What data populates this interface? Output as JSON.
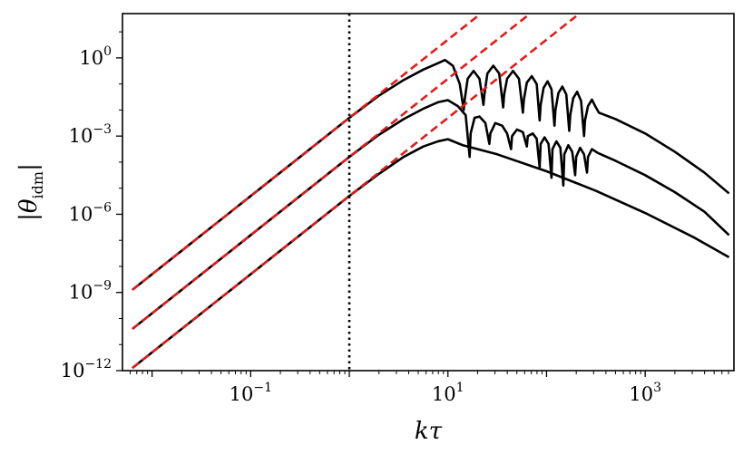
{
  "chart_data": {
    "type": "line",
    "xlabel_parts": [
      "k",
      "τ"
    ],
    "ylabel_parts": [
      "|",
      "θ",
      "idm",
      "|"
    ],
    "xscale": "log",
    "yscale": "log",
    "xlim_log10": [
      -2.3,
      3.9
    ],
    "ylim_log10": [
      -12,
      1.7
    ],
    "x_ticks": [
      {
        "base": "10",
        "exp": "−1",
        "log10": -1
      },
      {
        "base": "10",
        "exp": "1",
        "log10": 1
      },
      {
        "base": "10",
        "exp": "3",
        "log10": 3
      }
    ],
    "y_ticks": [
      {
        "base": "10",
        "exp": "0",
        "log10": 0
      },
      {
        "base": "10",
        "exp": "−3",
        "log10": -3
      },
      {
        "base": "10",
        "exp": "−6",
        "log10": -6
      },
      {
        "base": "10",
        "exp": "−9",
        "log10": -9
      },
      {
        "base": "10",
        "exp": "−12",
        "log10": -12
      }
    ],
    "vertical_line_log10_x": 0,
    "series": [
      {
        "color": "#000000",
        "style": "solid",
        "points_log10": [
          [
            -2.2,
            -8.9
          ],
          [
            -1.5,
            -6.8
          ],
          [
            -1.0,
            -5.3
          ],
          [
            -0.5,
            -3.8
          ],
          [
            0.0,
            -2.3
          ],
          [
            0.3,
            -1.45
          ],
          [
            0.55,
            -0.85
          ],
          [
            0.75,
            -0.45
          ],
          [
            0.9,
            -0.2
          ],
          [
            0.97,
            -0.08
          ],
          [
            1.05,
            -0.3
          ],
          [
            1.12,
            -1.0
          ],
          [
            1.16,
            -2.0
          ],
          [
            1.17,
            -1.6
          ],
          [
            1.2,
            -0.8
          ],
          [
            1.26,
            -0.5
          ],
          [
            1.32,
            -0.8
          ],
          [
            1.36,
            -1.8
          ],
          [
            1.37,
            -1.4
          ],
          [
            1.4,
            -0.6
          ],
          [
            1.46,
            -0.3
          ],
          [
            1.52,
            -0.6
          ],
          [
            1.56,
            -1.9
          ],
          [
            1.57,
            -1.4
          ],
          [
            1.6,
            -0.8
          ],
          [
            1.66,
            -0.5
          ],
          [
            1.72,
            -0.8
          ],
          [
            1.76,
            -2.1
          ],
          [
            1.77,
            -1.6
          ],
          [
            1.8,
            -0.95
          ],
          [
            1.85,
            -0.7
          ],
          [
            1.9,
            -1.0
          ],
          [
            1.93,
            -2.4
          ],
          [
            1.94,
            -1.8
          ],
          [
            1.97,
            -1.15
          ],
          [
            2.01,
            -0.9
          ],
          [
            2.05,
            -1.2
          ],
          [
            2.08,
            -2.6
          ],
          [
            2.09,
            -2.0
          ],
          [
            2.12,
            -1.35
          ],
          [
            2.16,
            -1.1
          ],
          [
            2.2,
            -1.4
          ],
          [
            2.23,
            -2.8
          ],
          [
            2.24,
            -2.2
          ],
          [
            2.27,
            -1.55
          ],
          [
            2.31,
            -1.3
          ],
          [
            2.35,
            -1.65
          ],
          [
            2.38,
            -3.0
          ],
          [
            2.39,
            -2.4
          ],
          [
            2.42,
            -1.85
          ],
          [
            2.46,
            -1.6
          ],
          [
            2.5,
            -1.9
          ],
          [
            2.53,
            -2.1
          ],
          [
            2.7,
            -2.35
          ],
          [
            3.0,
            -2.9
          ],
          [
            3.3,
            -3.6
          ],
          [
            3.6,
            -4.4
          ],
          [
            3.85,
            -5.2
          ]
        ]
      },
      {
        "color": "#000000",
        "style": "solid",
        "points_log10": [
          [
            -2.2,
            -10.4
          ],
          [
            -1.5,
            -8.3
          ],
          [
            -1.0,
            -6.8
          ],
          [
            -0.5,
            -5.3
          ],
          [
            0.0,
            -3.8
          ],
          [
            0.3,
            -2.95
          ],
          [
            0.55,
            -2.35
          ],
          [
            0.75,
            -1.95
          ],
          [
            0.9,
            -1.7
          ],
          [
            1.0,
            -1.62
          ],
          [
            1.1,
            -1.85
          ],
          [
            1.18,
            -2.2
          ],
          [
            1.22,
            -3.8
          ],
          [
            1.23,
            -2.9
          ],
          [
            1.27,
            -2.3
          ],
          [
            1.32,
            -2.25
          ],
          [
            1.38,
            -2.5
          ],
          [
            1.42,
            -3.3
          ],
          [
            1.43,
            -2.9
          ],
          [
            1.48,
            -2.5
          ],
          [
            1.55,
            -2.6
          ],
          [
            1.6,
            -2.9
          ],
          [
            1.64,
            -3.5
          ],
          [
            1.65,
            -3.0
          ],
          [
            1.7,
            -2.75
          ],
          [
            1.76,
            -2.85
          ],
          [
            1.8,
            -3.4
          ],
          [
            1.81,
            -3.0
          ],
          [
            1.86,
            -2.9
          ],
          [
            1.9,
            -3.1
          ],
          [
            1.93,
            -4.2
          ],
          [
            1.94,
            -3.3
          ],
          [
            1.98,
            -3.05
          ],
          [
            2.02,
            -3.3
          ],
          [
            2.05,
            -4.6
          ],
          [
            2.06,
            -3.5
          ],
          [
            2.1,
            -3.2
          ],
          [
            2.14,
            -3.45
          ],
          [
            2.17,
            -4.9
          ],
          [
            2.18,
            -3.7
          ],
          [
            2.22,
            -3.35
          ],
          [
            2.26,
            -3.6
          ],
          [
            2.29,
            -4.5
          ],
          [
            2.3,
            -3.8
          ],
          [
            2.34,
            -3.45
          ],
          [
            2.38,
            -3.7
          ],
          [
            2.41,
            -4.4
          ],
          [
            2.42,
            -3.8
          ],
          [
            2.46,
            -3.5
          ],
          [
            2.52,
            -3.65
          ],
          [
            2.7,
            -3.95
          ],
          [
            3.0,
            -4.5
          ],
          [
            3.3,
            -5.15
          ],
          [
            3.6,
            -5.9
          ],
          [
            3.85,
            -6.8
          ]
        ]
      },
      {
        "color": "#000000",
        "style": "solid",
        "points_log10": [
          [
            -2.2,
            -11.9
          ],
          [
            -1.5,
            -9.8
          ],
          [
            -1.0,
            -8.3
          ],
          [
            -0.5,
            -6.8
          ],
          [
            0.0,
            -5.3
          ],
          [
            0.3,
            -4.45
          ],
          [
            0.55,
            -3.8
          ],
          [
            0.75,
            -3.4
          ],
          [
            0.9,
            -3.2
          ],
          [
            1.0,
            -3.12
          ],
          [
            1.15,
            -3.35
          ],
          [
            1.5,
            -3.7
          ],
          [
            2.0,
            -4.35
          ],
          [
            2.5,
            -5.1
          ],
          [
            3.0,
            -5.95
          ],
          [
            3.5,
            -6.9
          ],
          [
            3.85,
            -7.65
          ]
        ]
      },
      {
        "color": "#e31a1c",
        "style": "dashed",
        "points_log10": [
          [
            -2.2,
            -8.9
          ],
          [
            1.3,
            1.6
          ]
        ]
      },
      {
        "color": "#e31a1c",
        "style": "dashed",
        "points_log10": [
          [
            -2.2,
            -10.4
          ],
          [
            1.8,
            1.6
          ]
        ]
      },
      {
        "color": "#e31a1c",
        "style": "dashed",
        "points_log10": [
          [
            -2.2,
            -11.9
          ],
          [
            2.3,
            1.6
          ]
        ]
      }
    ]
  }
}
